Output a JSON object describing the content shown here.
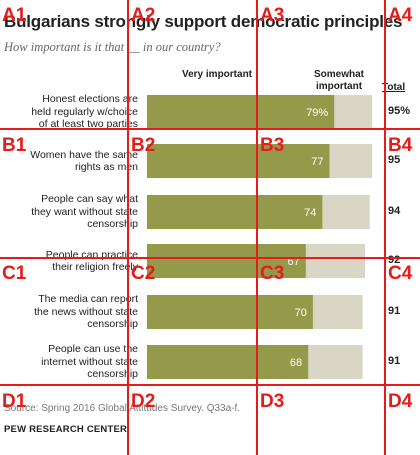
{
  "chart_data": {
    "type": "bar",
    "stacked": true,
    "title": "Bulgarians strongly support democratic principles",
    "subtitle": "How important is it that __ in our country?",
    "series": [
      {
        "name": "Very important",
        "color": "#949a4a"
      },
      {
        "name": "Somewhat important",
        "color": "#d9d6c5"
      }
    ],
    "total_label": "Total",
    "rows": [
      {
        "label": [
          "Honest elections are",
          "held regularly w/choice",
          "of at least two parties"
        ],
        "very": 79,
        "total": 95,
        "very_display": "79%",
        "total_display": "95%"
      },
      {
        "label": [
          "Women have the same",
          "rights as men"
        ],
        "very": 77,
        "total": 95,
        "very_display": "77",
        "total_display": "95"
      },
      {
        "label": [
          "People can say what",
          "they want without state",
          "censorship"
        ],
        "very": 74,
        "total": 94,
        "very_display": "74",
        "total_display": "94"
      },
      {
        "label": [
          "People can practice",
          "their religion freely"
        ],
        "very": 67,
        "total": 92,
        "very_display": "67",
        "total_display": "92"
      },
      {
        "label": [
          "The media can report",
          "the news without state",
          "censorship"
        ],
        "very": 70,
        "total": 91,
        "very_display": "70",
        "total_display": "91"
      },
      {
        "label": [
          "People can use the",
          "internet without state",
          "censorship"
        ],
        "very": 68,
        "total": 91,
        "very_display": "68",
        "total_display": "91"
      }
    ],
    "source": "Source: Spring 2016 Global Attitudes Survey. Q33a-f.",
    "org": "PEW RESEARCH CENTER"
  },
  "overlay": {
    "color": "#e81b1b",
    "labels": [
      "A1",
      "A2",
      "A3",
      "A4",
      "B1",
      "B2",
      "B3",
      "B4",
      "C1",
      "C2",
      "C3",
      "C4",
      "D1",
      "D2",
      "D3",
      "D4"
    ]
  }
}
